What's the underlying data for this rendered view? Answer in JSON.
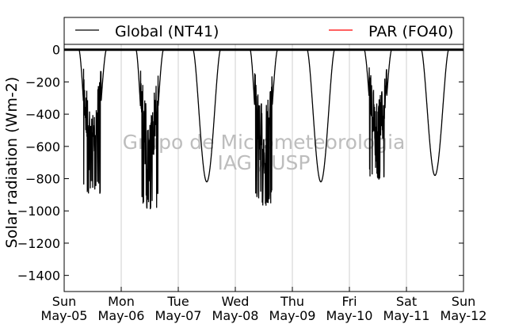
{
  "chart_data": {
    "type": "line",
    "ylabel": "Solar radiation (Wm-2)",
    "ylim": [
      -1500,
      200
    ],
    "yticks": [
      0,
      -200,
      -400,
      -600,
      -800,
      -1000,
      -1200,
      -1400
    ],
    "xlim": [
      "2013-05-05",
      "2013-05-12"
    ],
    "xticks": [
      {
        "day": "Sun",
        "date": "May-05"
      },
      {
        "day": "Mon",
        "date": "May-06"
      },
      {
        "day": "Tue",
        "date": "May-07"
      },
      {
        "day": "Wed",
        "date": "May-08"
      },
      {
        "day": "Thu",
        "date": "May-09"
      },
      {
        "day": "Fri",
        "date": "May-10"
      },
      {
        "day": "Sat",
        "date": "May-11"
      },
      {
        "day": "Sun",
        "date": "May-12"
      }
    ],
    "grid": "vertical",
    "legend": {
      "placement": "top",
      "entries": [
        "Global (NT41)",
        "PAR (FO40)"
      ]
    },
    "series": [
      {
        "name": "Global (NT41)",
        "color": "#000000",
        "days": [
          {
            "sunrise": 0.26,
            "sunset": 0.74,
            "peak": 0.48,
            "min": -900,
            "noisy": true
          },
          {
            "sunrise": 0.26,
            "sunset": 0.74,
            "peak": 0.48,
            "min": -990,
            "noisy": true
          },
          {
            "sunrise": 0.26,
            "sunset": 0.74,
            "peak": 0.5,
            "min": -820,
            "noisy": false
          },
          {
            "sunrise": 0.26,
            "sunset": 0.74,
            "peak": 0.48,
            "min": -970,
            "noisy": true
          },
          {
            "sunrise": 0.26,
            "sunset": 0.74,
            "peak": 0.5,
            "min": -820,
            "noisy": false
          },
          {
            "sunrise": 0.26,
            "sunset": 0.74,
            "peak": 0.5,
            "min": -810,
            "noisy": true
          },
          {
            "sunrise": 0.26,
            "sunset": 0.74,
            "peak": 0.5,
            "min": -780,
            "noisy": false
          }
        ]
      },
      {
        "name": "PAR (FO40)",
        "color": "#ff0000",
        "values_note": ""
      }
    ],
    "watermark": [
      "Grupo de Micrometeorologia",
      "IAG / USP"
    ]
  }
}
